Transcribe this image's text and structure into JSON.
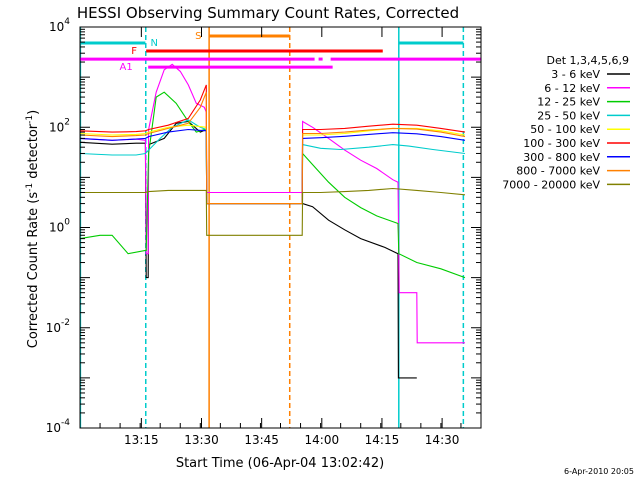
{
  "chart_data": {
    "type": "line",
    "title": "HESSI Observing Summary Count Rates, Corrected",
    "xlabel": "Start Time (06-Apr-04 13:02:42)",
    "ylabel_main": "Corrected Count Rate (s",
    "ylabel_exp1": "-1",
    "ylabel_mid": " detector",
    "ylabel_exp2": "-1",
    "ylabel_end": ")",
    "x_range_minutes": [
      0,
      100
    ],
    "y_scale": "log",
    "ylim": [
      0.0001,
      10000
    ],
    "x_ticks": [
      {
        "t": 15.3,
        "label": "13:15"
      },
      {
        "t": 30.3,
        "label": "13:30"
      },
      {
        "t": 45.3,
        "label": "13:45"
      },
      {
        "t": 60.3,
        "label": "14:00"
      },
      {
        "t": 75.3,
        "label": "14:15"
      },
      {
        "t": 90.3,
        "label": "14:30"
      }
    ],
    "y_ticks": [
      {
        "v": 10000,
        "base": "10",
        "exp": "4"
      },
      {
        "v": 100,
        "base": "10",
        "exp": "2"
      },
      {
        "v": 1,
        "base": "10",
        "exp": "0"
      },
      {
        "v": 0.01,
        "base": "10",
        "exp": "-2"
      },
      {
        "v": 0.0001,
        "base": "10",
        "exp": "-4"
      }
    ],
    "legend_title": "Det 1,3,4,5,6,9",
    "legend_position": "right",
    "series": [
      {
        "name": "3 - 6 keV",
        "color": "#000000",
        "points": [
          [
            0,
            50
          ],
          [
            8,
            46
          ],
          [
            14,
            48
          ],
          [
            16.3,
            48
          ],
          [
            16.5,
            0.1
          ],
          [
            17,
            0.1
          ],
          [
            17.1,
            45
          ],
          [
            21,
            60
          ],
          [
            24,
            120
          ],
          [
            27,
            130
          ],
          [
            30,
            80
          ],
          [
            31.5,
            90
          ],
          [
            31.6,
            3
          ],
          [
            55.4,
            3
          ],
          [
            55.5,
            3
          ],
          [
            58,
            2.6
          ],
          [
            62,
            1.4
          ],
          [
            66,
            0.9
          ],
          [
            70,
            0.6
          ],
          [
            76,
            0.4
          ],
          [
            79.3,
            0.3
          ],
          [
            79.4,
            0.001
          ],
          [
            84,
            0.001
          ]
        ]
      },
      {
        "name": "6 - 12 keV",
        "color": "#ff00ff",
        "points": [
          [
            0,
            60
          ],
          [
            8,
            55
          ],
          [
            14,
            58
          ],
          [
            16.3,
            55
          ],
          [
            16.5,
            0.3
          ],
          [
            17,
            0.3
          ],
          [
            17.1,
            90
          ],
          [
            19,
            500
          ],
          [
            21,
            1400
          ],
          [
            23,
            1800
          ],
          [
            25,
            1300
          ],
          [
            27,
            700
          ],
          [
            29,
            300
          ],
          [
            31,
            250
          ],
          [
            31.5,
            200
          ],
          [
            31.6,
            5
          ],
          [
            55.4,
            5
          ],
          [
            55.5,
            130
          ],
          [
            58,
            100
          ],
          [
            62,
            60
          ],
          [
            66,
            35
          ],
          [
            70,
            22
          ],
          [
            74,
            15
          ],
          [
            78,
            9
          ],
          [
            79.3,
            8
          ],
          [
            79.6,
            0.05
          ],
          [
            84,
            0.05
          ],
          [
            84.1,
            0.005
          ],
          [
            96,
            0.005
          ]
        ]
      },
      {
        "name": "12 - 25 keV",
        "color": "#00cc00",
        "points": [
          [
            0,
            0.6
          ],
          [
            5,
            0.7
          ],
          [
            8,
            0.7
          ],
          [
            12,
            0.3
          ],
          [
            16.3,
            0.35
          ],
          [
            16.5,
            0.35
          ],
          [
            17.1,
            30
          ],
          [
            19,
            400
          ],
          [
            21,
            500
          ],
          [
            24,
            300
          ],
          [
            27,
            130
          ],
          [
            29,
            80
          ],
          [
            31,
            90
          ],
          [
            31.5,
            90
          ],
          [
            31.6,
            3
          ],
          [
            55.4,
            3
          ],
          [
            55.5,
            30
          ],
          [
            58,
            18
          ],
          [
            62,
            8
          ],
          [
            66,
            4
          ],
          [
            70,
            2.5
          ],
          [
            74,
            1.7
          ],
          [
            79.3,
            1.2
          ],
          [
            79.5,
            0.3
          ],
          [
            84,
            0.2
          ],
          [
            90,
            0.15
          ],
          [
            96,
            0.1
          ]
        ]
      },
      {
        "name": "25 - 50 keV",
        "color": "#00cccc",
        "points": [
          [
            0,
            30
          ],
          [
            8,
            28
          ],
          [
            14,
            28
          ],
          [
            16.3,
            30
          ],
          [
            17.1,
            35
          ],
          [
            20,
            60
          ],
          [
            23,
            100
          ],
          [
            27,
            140
          ],
          [
            30,
            100
          ],
          [
            31.5,
            90
          ],
          [
            31.6,
            3
          ],
          [
            55.4,
            3
          ],
          [
            55.5,
            45
          ],
          [
            60,
            38
          ],
          [
            65,
            36
          ],
          [
            72,
            40
          ],
          [
            78,
            45
          ],
          [
            82,
            42
          ],
          [
            88,
            36
          ],
          [
            96,
            30
          ]
        ]
      },
      {
        "name": "50 - 100 keV",
        "color": "#ffff00",
        "points": [
          [
            0,
            75
          ],
          [
            8,
            70
          ],
          [
            14,
            72
          ],
          [
            16.3,
            75
          ],
          [
            17.1,
            80
          ],
          [
            22,
            100
          ],
          [
            27,
            110
          ],
          [
            31.5,
            100
          ],
          [
            31.6,
            3
          ],
          [
            55.4,
            3
          ],
          [
            55.5,
            70
          ],
          [
            60,
            70
          ],
          [
            66,
            75
          ],
          [
            72,
            85
          ],
          [
            78,
            95
          ],
          [
            84,
            95
          ],
          [
            90,
            85
          ],
          [
            96,
            70
          ]
        ]
      },
      {
        "name": "100 - 300 keV",
        "color": "#ff0000",
        "points": [
          [
            0,
            85
          ],
          [
            8,
            80
          ],
          [
            14,
            82
          ],
          [
            16.3,
            85
          ],
          [
            17.1,
            90
          ],
          [
            22,
            110
          ],
          [
            27,
            150
          ],
          [
            30,
            350
          ],
          [
            31.5,
            700
          ],
          [
            31.6,
            3
          ],
          [
            55.4,
            3
          ],
          [
            55.5,
            90
          ],
          [
            60,
            90
          ],
          [
            66,
            95
          ],
          [
            72,
            105
          ],
          [
            78,
            115
          ],
          [
            84,
            110
          ],
          [
            90,
            95
          ],
          [
            96,
            80
          ]
        ]
      },
      {
        "name": "300 - 800 keV",
        "color": "#0000ff",
        "points": [
          [
            0,
            60
          ],
          [
            8,
            55
          ],
          [
            14,
            58
          ],
          [
            16.3,
            60
          ],
          [
            17.1,
            65
          ],
          [
            22,
            80
          ],
          [
            27,
            90
          ],
          [
            31.5,
            85
          ],
          [
            31.6,
            3
          ],
          [
            55.4,
            3
          ],
          [
            55.5,
            60
          ],
          [
            60,
            62
          ],
          [
            66,
            66
          ],
          [
            72,
            72
          ],
          [
            78,
            78
          ],
          [
            84,
            74
          ],
          [
            90,
            65
          ],
          [
            96,
            55
          ]
        ]
      },
      {
        "name": "800 - 7000 keV",
        "color": "#ff8000",
        "points": [
          [
            0,
            70
          ],
          [
            8,
            65
          ],
          [
            14,
            68
          ],
          [
            16.3,
            70
          ],
          [
            17.1,
            75
          ],
          [
            22,
            95
          ],
          [
            27,
            120
          ],
          [
            30,
            250
          ],
          [
            31.5,
            500
          ],
          [
            31.6,
            3
          ],
          [
            55.4,
            3
          ],
          [
            55.5,
            75
          ],
          [
            60,
            75
          ],
          [
            66,
            80
          ],
          [
            72,
            88
          ],
          [
            78,
            95
          ],
          [
            84,
            92
          ],
          [
            90,
            80
          ],
          [
            96,
            65
          ]
        ]
      },
      {
        "name": "7000 - 20000 keV",
        "color": "#808000",
        "points": [
          [
            0,
            5
          ],
          [
            8,
            5
          ],
          [
            14,
            5
          ],
          [
            16.3,
            5
          ],
          [
            17.1,
            5.2
          ],
          [
            22,
            5.5
          ],
          [
            27,
            5.5
          ],
          [
            31.5,
            5.5
          ],
          [
            31.6,
            0.7
          ],
          [
            55.4,
            0.7
          ],
          [
            55.5,
            5
          ],
          [
            60,
            5
          ],
          [
            66,
            5.2
          ],
          [
            72,
            5.5
          ],
          [
            78,
            6
          ],
          [
            84,
            5.5
          ],
          [
            90,
            5
          ],
          [
            96,
            4.5
          ]
        ]
      }
    ],
    "vlines": [
      {
        "t": 0.1,
        "color": "#00cccc",
        "style": "solid"
      },
      {
        "t": 16.4,
        "color": "#00cccc",
        "style": "dashed"
      },
      {
        "t": 32.2,
        "color": "#ff8000",
        "style": "solid"
      },
      {
        "t": 52.3,
        "color": "#ff8000",
        "style": "dashed"
      },
      {
        "t": 79.5,
        "color": "#00cccc",
        "style": "solid"
      },
      {
        "t": 95.6,
        "color": "#00cccc",
        "style": "dashed"
      }
    ],
    "flags": [
      {
        "label": "N",
        "color": "#00cccc",
        "label_t": 18.5,
        "log_y": 3.68,
        "segments": [
          [
            0,
            16.3
          ],
          [
            79.5,
            95.6
          ]
        ]
      },
      {
        "label": "S",
        "color": "#ff8000",
        "label_t": 29.5,
        "log_y": 3.82,
        "segments": [
          [
            32.2,
            52.3
          ]
        ]
      },
      {
        "label": "F",
        "color": "#ff0000",
        "label_t": 13.5,
        "log_y": 3.52,
        "segments": [
          [
            16.5,
            75.5
          ]
        ]
      },
      {
        "label": "",
        "color": "#ff00ff",
        "label_t": null,
        "log_y": 3.36,
        "segments": [
          [
            0,
            58.5
          ],
          [
            59.5,
            60.5
          ],
          [
            62.5,
            100
          ]
        ]
      },
      {
        "label": "A1",
        "color": "#ff00ff",
        "label_t": 11.5,
        "log_y": 3.2,
        "segments": [
          [
            17,
            63
          ]
        ]
      }
    ]
  },
  "footer": {
    "date": "6-Apr-2010 20:05"
  }
}
